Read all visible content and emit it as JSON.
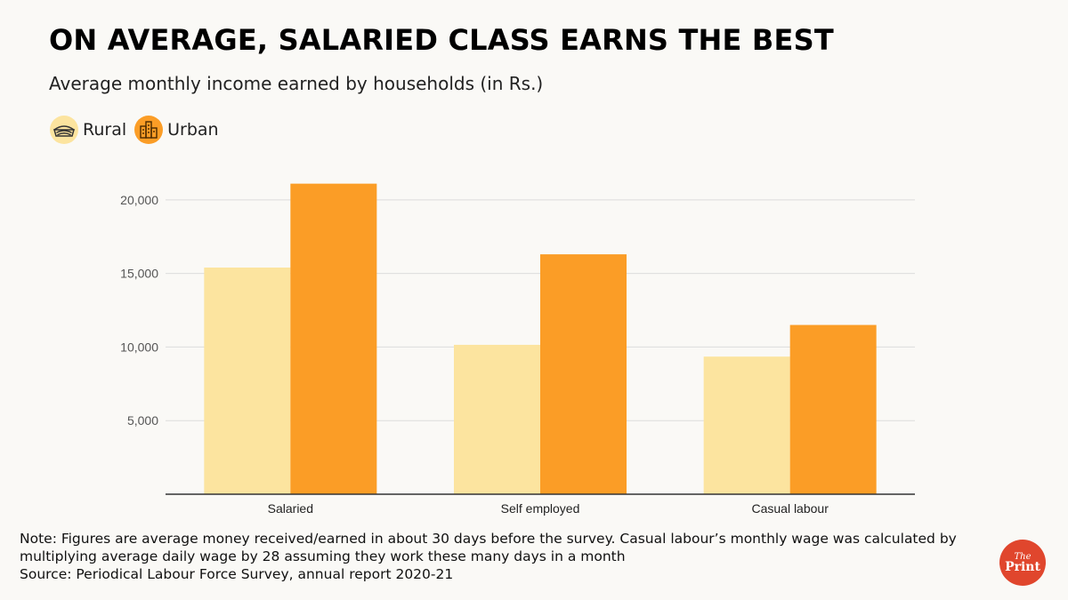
{
  "title": "ON AVERAGE, SALARIED CLASS EARNS THE BEST",
  "subtitle": "Average monthly income earned by households (in Rs.)",
  "legend": [
    {
      "label": "Rural",
      "icon": "rural-field-icon",
      "color": "#fce49f"
    },
    {
      "label": "Urban",
      "icon": "urban-buildings-icon",
      "color": "#fb9d26"
    }
  ],
  "chart_data": {
    "type": "bar",
    "categories": [
      "Salaried",
      "Self employed",
      "Casual labour"
    ],
    "series": [
      {
        "name": "Rural",
        "values": [
          15400,
          10150,
          9350
        ],
        "color": "#fce49f"
      },
      {
        "name": "Urban",
        "values": [
          21100,
          16300,
          11500
        ],
        "color": "#fb9d26"
      }
    ],
    "yticks": [
      5000,
      10000,
      15000,
      20000
    ],
    "ytick_labels": [
      "5,000",
      "10,000",
      "15,000",
      "20,000"
    ],
    "ylim": [
      0,
      21500
    ],
    "grid": true,
    "legend_position": "top-left"
  },
  "notes": {
    "line1": "Note: Figures are average money received/earned in about 30 days before the survey. Casual labour’s monthly wage was calculated by multiplying average daily wage by 28 assuming they work these many days in a month",
    "source": "Source: Periodical Labour Force Survey, annual report 2020-21"
  },
  "logo": {
    "line1": "The",
    "line2": "Print",
    "color": "#e0462d"
  }
}
